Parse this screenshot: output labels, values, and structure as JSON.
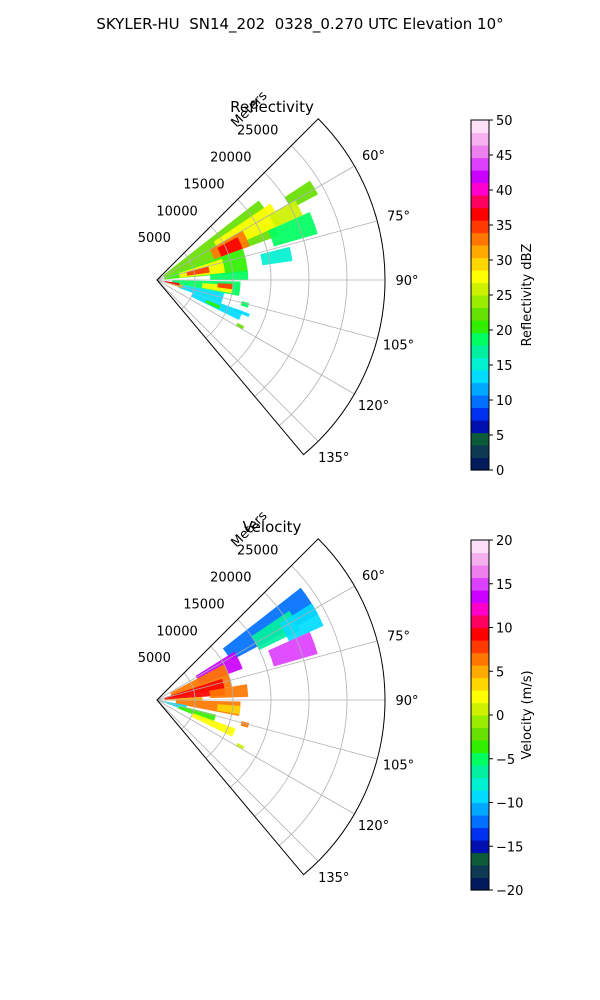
{
  "suptitle": "SKYLER-HU  SN14_202  0328_0.270 UTC Elevation 10°",
  "chart_data": [
    {
      "type": "heatmap",
      "subtype": "polar-sector",
      "title": "Reflectivity",
      "radial_label": "Meters",
      "radial_ticks": [
        "5000",
        "10000",
        "15000",
        "20000",
        "25000"
      ],
      "radial_tick_values": [
        5000,
        10000,
        15000,
        20000,
        25000
      ],
      "rlim": [
        0,
        30000
      ],
      "angle_ticks": [
        "60°",
        "75°",
        "90°",
        "105°",
        "120°",
        "135°"
      ],
      "angle_tick_values": [
        60,
        75,
        90,
        105,
        120,
        135
      ],
      "theta_range_deg": [
        45,
        140
      ],
      "grid": true,
      "colorbar": {
        "label": "Reflectivity dBZ",
        "range": [
          0,
          50
        ],
        "ticks": [
          "0",
          "5",
          "10",
          "15",
          "20",
          "25",
          "30",
          "35",
          "40",
          "45",
          "50"
        ],
        "tick_values": [
          0,
          5,
          10,
          15,
          20,
          25,
          30,
          35,
          40,
          45,
          50
        ],
        "colors": [
          "#001a5c",
          "#0d3a52",
          "#0c5a3a",
          "#0010b0",
          "#0030f0",
          "#0070ff",
          "#00a8ff",
          "#00dcff",
          "#00f0d0",
          "#00f0a0",
          "#00ff60",
          "#30f000",
          "#66e000",
          "#99ee00",
          "#ccf200",
          "#ffff00",
          "#ffd700",
          "#ffaa00",
          "#ff7700",
          "#ff3a00",
          "#ff0000",
          "#ff0060",
          "#ff00cc",
          "#cc00ff",
          "#dd40ff",
          "#ee80ee",
          "#f6b0f0",
          "#fde0f8"
        ]
      },
      "echoes": [
        {
          "theta": [
            52,
            70
          ],
          "r": [
            1000,
            17000
          ],
          "value": 22
        },
        {
          "theta": [
            56,
            66
          ],
          "r": [
            9000,
            18000
          ],
          "value": 27
        },
        {
          "theta": [
            60,
            70
          ],
          "r": [
            8000,
            13000
          ],
          "value": 33
        },
        {
          "theta": [
            62,
            70
          ],
          "r": [
            9000,
            12000
          ],
          "value": 37
        },
        {
          "theta": [
            70,
            85
          ],
          "r": [
            1000,
            12000
          ],
          "value": 21
        },
        {
          "theta": [
            72,
            84
          ],
          "r": [
            3000,
            9000
          ],
          "value": 27
        },
        {
          "theta": [
            75,
            82
          ],
          "r": [
            4000,
            7000
          ],
          "value": 34
        },
        {
          "theta": [
            57,
            62
          ],
          "r": [
            20000,
            24000
          ],
          "value": 22
        },
        {
          "theta": [
            66,
            74
          ],
          "r": [
            16000,
            22000
          ],
          "value": 18
        },
        {
          "theta": [
            60,
            66
          ],
          "r": [
            17000,
            21000
          ],
          "value": 26
        },
        {
          "theta": [
            76,
            82
          ],
          "r": [
            14000,
            18000
          ],
          "value": 16
        },
        {
          "theta": [
            84,
            90
          ],
          "r": [
            7000,
            12000
          ],
          "value": 18
        },
        {
          "theta": [
            91,
            101
          ],
          "r": [
            2000,
            11000
          ],
          "value": 19
        },
        {
          "theta": [
            94,
            100
          ],
          "r": [
            6000,
            10000
          ],
          "value": 27
        },
        {
          "theta": [
            93,
            97
          ],
          "r": [
            8000,
            10000
          ],
          "value": 35
        },
        {
          "theta": [
            101,
            110
          ],
          "r": [
            3000,
            9000
          ],
          "value": 13
        },
        {
          "theta": [
            101,
            108
          ],
          "r": [
            500,
            3500
          ],
          "value": 31
        },
        {
          "theta": [
            98,
            104
          ],
          "r": [
            1000,
            3000
          ],
          "value": 37
        },
        {
          "theta": [
            110,
            116
          ],
          "r": [
            5000,
            12000
          ],
          "value": 14
        },
        {
          "theta": [
            112,
            115
          ],
          "r": [
            7000,
            9000
          ],
          "value": 21
        },
        {
          "theta": [
            104,
            107
          ],
          "r": [
            11500,
            12500
          ],
          "value": 18
        },
        {
          "theta": [
            110,
            112
          ],
          "r": [
            11000,
            13000
          ],
          "value": 14
        },
        {
          "theta": [
            118,
            120
          ],
          "r": [
            12000,
            13000
          ],
          "value": 22
        }
      ]
    },
    {
      "type": "heatmap",
      "subtype": "polar-sector",
      "title": "Velocity",
      "radial_label": "Meters",
      "radial_ticks": [
        "5000",
        "10000",
        "15000",
        "20000",
        "25000"
      ],
      "radial_tick_values": [
        5000,
        10000,
        15000,
        20000,
        25000
      ],
      "rlim": [
        0,
        30000
      ],
      "angle_ticks": [
        "60°",
        "75°",
        "90°",
        "105°",
        "120°",
        "135°"
      ],
      "angle_tick_values": [
        60,
        75,
        90,
        105,
        120,
        135
      ],
      "theta_range_deg": [
        45,
        140
      ],
      "grid": true,
      "colorbar": {
        "label": "Velocity (m/s)",
        "range": [
          -20,
          20
        ],
        "ticks": [
          "−20",
          "−15",
          "−10",
          "−5",
          "0",
          "5",
          "10",
          "15",
          "20"
        ],
        "tick_values": [
          -20,
          -15,
          -10,
          -5,
          0,
          5,
          10,
          15,
          20
        ],
        "colors": [
          "#001a5c",
          "#0d3a52",
          "#0c5a3a",
          "#0010b0",
          "#0030f0",
          "#0070ff",
          "#00a8ff",
          "#00dcff",
          "#00f0d0",
          "#00f0a0",
          "#00ff60",
          "#30f000",
          "#66e000",
          "#99ee00",
          "#ccf200",
          "#ffff00",
          "#ffd700",
          "#ffaa00",
          "#ff7700",
          "#ff3a00",
          "#ff0000",
          "#ff0060",
          "#ff00cc",
          "#cc00ff",
          "#dd40ff",
          "#ee80ee",
          "#f6b0f0",
          "#fde0f8"
        ]
      },
      "echoes": [
        {
          "theta": [
            52,
            62
          ],
          "r": [
            11000,
            24000
          ],
          "value": -12
        },
        {
          "theta": [
            56,
            64
          ],
          "r": [
            15000,
            21000
          ],
          "value": -7
        },
        {
          "theta": [
            58,
            66
          ],
          "r": [
            19000,
            24000
          ],
          "value": -10
        },
        {
          "theta": [
            58,
            70
          ],
          "r": [
            6000,
            12000
          ],
          "value": 13
        },
        {
          "theta": [
            66,
            74
          ],
          "r": [
            16000,
            22000
          ],
          "value": 15
        },
        {
          "theta": [
            62,
            80
          ],
          "r": [
            2000,
            10000
          ],
          "value": 7
        },
        {
          "theta": [
            72,
            86
          ],
          "r": [
            1000,
            9000
          ],
          "value": 9
        },
        {
          "theta": [
            80,
            88
          ],
          "r": [
            7000,
            12000
          ],
          "value": 6
        },
        {
          "theta": [
            86,
            92
          ],
          "r": [
            1000,
            6000
          ],
          "value": 5
        },
        {
          "theta": [
            91,
            101
          ],
          "r": [
            2500,
            11000
          ],
          "value": 6
        },
        {
          "theta": [
            94,
            100
          ],
          "r": [
            8000,
            11000
          ],
          "value": 3
        },
        {
          "theta": [
            100,
            110
          ],
          "r": [
            500,
            4000
          ],
          "value": -10
        },
        {
          "theta": [
            104,
            112
          ],
          "r": [
            3000,
            8000
          ],
          "value": -4
        },
        {
          "theta": [
            110,
            116
          ],
          "r": [
            5000,
            11000
          ],
          "value": 2
        },
        {
          "theta": [
            104,
            107
          ],
          "r": [
            11500,
            12500
          ],
          "value": 6
        },
        {
          "theta": [
            118,
            120
          ],
          "r": [
            12000,
            13000
          ],
          "value": 0
        }
      ]
    }
  ]
}
